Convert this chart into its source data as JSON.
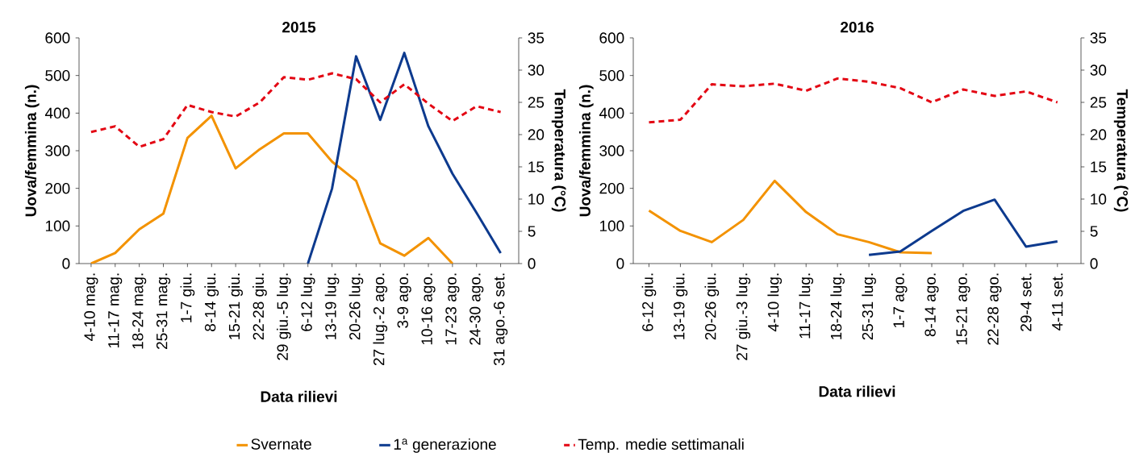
{
  "chart_data": [
    {
      "type": "line",
      "title": "2015",
      "xlabel": "Data rilievi",
      "ylabel": "Uova/femmina (n.)",
      "y2label": "Temperatura (°C)",
      "categories": [
        "4-10 mag.",
        "11-17 mag.",
        "18-24 mag.",
        "25-31 mag.",
        "1-7 giu.",
        "8-14 giu.",
        "15-21 giu.",
        "22-28 giu.",
        "29 giu.-5 lug.",
        "6-12 lug.",
        "13-19 lug.",
        "20-26 lug.",
        "27 lug.-2 ago.",
        "3-9 ago.",
        "10-16 ago.",
        "17-23 ago.",
        "24-30 ago.",
        "31 ago.-6 set."
      ],
      "series": [
        {
          "name": "Svernate",
          "color": "#f39200",
          "values": [
            0,
            28,
            91,
            133,
            334,
            393,
            253,
            304,
            346,
            346,
            271,
            220,
            54,
            21,
            68,
            0,
            null,
            null
          ]
        },
        {
          "name": "1$^{a}$ generazione",
          "color": "#0d3a8e",
          "values": [
            null,
            null,
            null,
            null,
            null,
            null,
            null,
            null,
            null,
            0,
            199,
            551,
            382,
            560,
            365,
            239,
            135,
            28
          ]
        },
        {
          "name": "Temp. medie settimanali",
          "color": "#e30613",
          "axis": "y2",
          "line_style": "dashed",
          "values": [
            20.4,
            21.3,
            18.1,
            19.3,
            24.6,
            23.5,
            22.8,
            25.0,
            28.9,
            28.5,
            29.5,
            28.6,
            25.0,
            27.8,
            24.8,
            22.1,
            24.4,
            23.5
          ]
        }
      ],
      "ylim": [
        0,
        600
      ],
      "yticks": [
        0,
        100,
        200,
        300,
        400,
        500,
        600
      ],
      "y2lim": [
        0,
        35
      ],
      "y2ticks": [
        0,
        5,
        10,
        15,
        20,
        25,
        30,
        35
      ],
      "legend": "bottom",
      "grid": false
    },
    {
      "type": "line",
      "title": "2016",
      "xlabel": "Data rilievi",
      "ylabel": "Uova/femmina (n.)",
      "y2label": "Temperatura (°C)",
      "categories": [
        "6-12 giu.",
        "13-19 giu.",
        "20-26 giu.",
        "27 giu.-3 lug.",
        "4-10 lug.",
        "11-17 lug.",
        "18-24 lug.",
        "25-31 lug.",
        "1-7 ago.",
        "8-14 ago.",
        "15-21 ago.",
        "22-28 ago.",
        "29-4 set.",
        "4-11 set."
      ],
      "series": [
        {
          "color": "#f39200",
          "values": [
            141,
            87,
            57,
            116,
            220,
            137,
            78,
            57,
            30,
            28,
            null,
            null,
            null,
            null
          ]
        },
        {
          "color": "#0d3a8e",
          "values": [
            null,
            null,
            null,
            null,
            null,
            null,
            null,
            23,
            32,
            87,
            140,
            170,
            45,
            59
          ]
        },
        {
          "color": "#e30613",
          "axis": "y2",
          "line_style": "dashed",
          "values": [
            21.9,
            22.3,
            27.8,
            27.5,
            27.9,
            26.8,
            28.7,
            28.2,
            27.2,
            25.0,
            27.0,
            26.0,
            26.7,
            25.0
          ]
        }
      ],
      "ylim": [
        0,
        600
      ],
      "yticks": [
        0,
        100,
        200,
        300,
        400,
        500,
        600
      ],
      "y2lim": [
        0,
        35
      ],
      "y2ticks": [
        0,
        5,
        10,
        15,
        20,
        25,
        30,
        35
      ],
      "grid": false
    }
  ]
}
